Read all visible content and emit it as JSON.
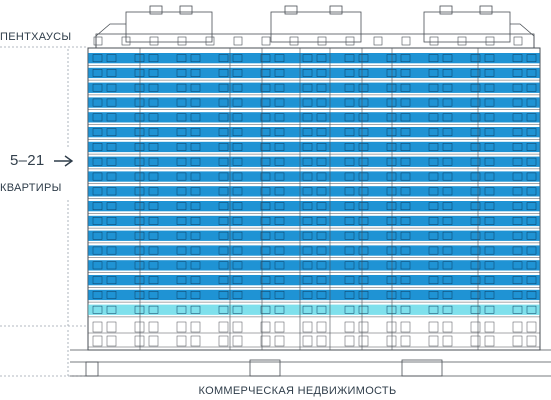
{
  "labels": {
    "penthouses": "ПЕНТХАУСЫ",
    "floors_range": "5–21",
    "apartments": "КВАРТИРЫ",
    "commercial": "КОММЕРЧЕСКАЯ НЕДВИЖИМОСТЬ"
  },
  "colors": {
    "apartments_band": "#1f93d4",
    "light_band": "#7fe0ec",
    "outline": "#4a4f55",
    "guide": "#9aa4ad",
    "text": "#2f3d4a"
  },
  "icons": {
    "floors_indicator": "arrow-right-icon"
  }
}
